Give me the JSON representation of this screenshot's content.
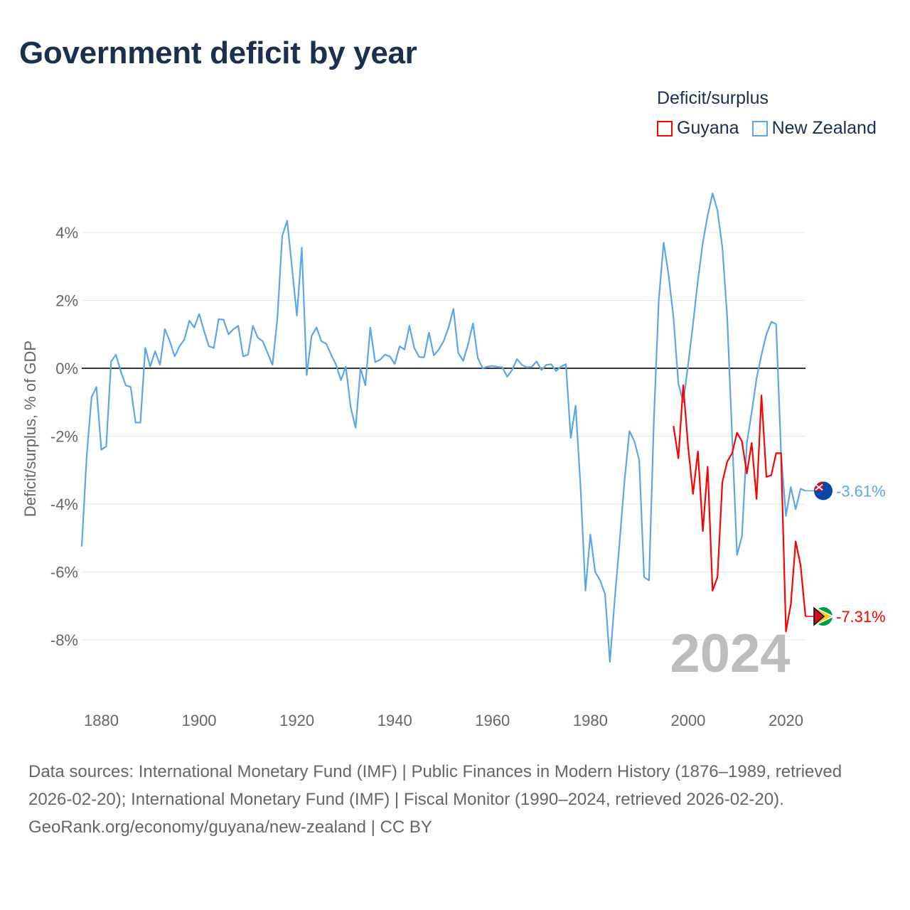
{
  "title": "Government deficit by year",
  "legend": {
    "title": "Deficit/surplus",
    "items": [
      {
        "name": "Guyana",
        "color": "#ff0000"
      },
      {
        "name": "New Zealand",
        "color": "#5ba6ea"
      }
    ]
  },
  "footer": {
    "sources": "Data sources: International Monetary Fund (IMF) | Public Finances in Modern History (1876–1989, retrieved 2026-02-20); International Monetary Fund (IMF) | Fiscal Monitor (1990–2024, retrieved 2026-02-20).",
    "credit": "GeoRank.org/economy/guyana/new-zealand | CC BY"
  },
  "chart_data": {
    "type": "line",
    "title": "Government deficit by year",
    "xlabel": "",
    "ylabel": "Deficit/surplus, % of GDP",
    "xlim": [
      1876,
      2024
    ],
    "ylim": [
      -9.5,
      5.5
    ],
    "x_ticks": [
      1880,
      1900,
      1920,
      1940,
      1960,
      1980,
      2000,
      2020
    ],
    "y_ticks": [
      4,
      2,
      0,
      -2,
      -4,
      -6,
      -8
    ],
    "y_tick_labels": [
      "4%",
      "2%",
      "0%",
      "-2%",
      "-4%",
      "-6%",
      "-8%"
    ],
    "grid": true,
    "legend_position": "top-right",
    "year_watermark": "2024",
    "series": [
      {
        "name": "New Zealand",
        "color": "#5ba6ea",
        "start_year": 1876,
        "end_label": "-3.61%",
        "values": [
          -5.25,
          -2.6,
          -0.85,
          -0.55,
          -2.4,
          -2.3,
          0.2,
          0.4,
          -0.1,
          -0.5,
          -0.55,
          -1.6,
          -1.6,
          0.6,
          0.05,
          0.5,
          0.1,
          1.15,
          0.8,
          0.35,
          0.65,
          0.85,
          1.4,
          1.2,
          1.6,
          1.1,
          0.65,
          0.6,
          1.45,
          1.43,
          1.0,
          1.15,
          1.25,
          0.35,
          0.4,
          1.25,
          0.9,
          0.8,
          0.45,
          0.1,
          1.45,
          3.9,
          4.35,
          2.95,
          1.55,
          3.55,
          -0.2,
          0.95,
          1.2,
          0.8,
          0.72,
          0.4,
          0.1,
          -0.35,
          0.05,
          -1.15,
          -1.75,
          0.0,
          -0.5,
          1.2,
          0.18,
          0.25,
          0.4,
          0.35,
          0.13,
          0.65,
          0.55,
          1.25,
          0.6,
          0.33,
          0.32,
          1.05,
          0.38,
          0.55,
          0.8,
          1.2,
          1.75,
          0.45,
          0.22,
          0.7,
          1.32,
          0.3,
          0.0,
          0.05,
          0.07,
          0.04,
          0.03,
          -0.25,
          -0.05,
          0.27,
          0.1,
          0.03,
          0.04,
          0.2,
          -0.05,
          0.1,
          0.12,
          -0.08,
          0.05,
          0.12,
          -2.05,
          -1.1,
          -3.5,
          -6.55,
          -4.9,
          -6.0,
          -6.25,
          -6.65,
          -8.65,
          -6.8,
          -5.1,
          -3.3,
          -1.85,
          -2.15,
          -2.7,
          -6.15,
          -6.25,
          -1.5,
          2.0,
          3.7,
          2.75,
          1.5,
          -0.45,
          -1.0,
          0.1,
          1.3,
          2.6,
          3.7,
          4.5,
          5.15,
          4.65,
          3.55,
          1.5,
          -2.0,
          -5.5,
          -4.95,
          -2.2,
          -1.3,
          -0.3,
          0.4,
          1.0,
          1.37,
          1.3,
          -2.5,
          -4.35,
          -3.5,
          -4.15,
          -3.55,
          -3.61
        ]
      },
      {
        "name": "Guyana",
        "color": "#ff0000",
        "start_year": 1997,
        "end_label": "-7.31%",
        "values": [
          -1.7,
          -2.65,
          -0.5,
          -2.3,
          -3.7,
          -2.45,
          -4.8,
          -2.9,
          -6.55,
          -6.15,
          -3.35,
          -2.75,
          -2.5,
          -1.9,
          -2.15,
          -3.1,
          -2.2,
          -3.85,
          -0.8,
          -3.2,
          -3.15,
          -2.5,
          -2.5,
          -7.75,
          -6.95,
          -5.1,
          -5.8,
          -7.31
        ]
      }
    ]
  }
}
